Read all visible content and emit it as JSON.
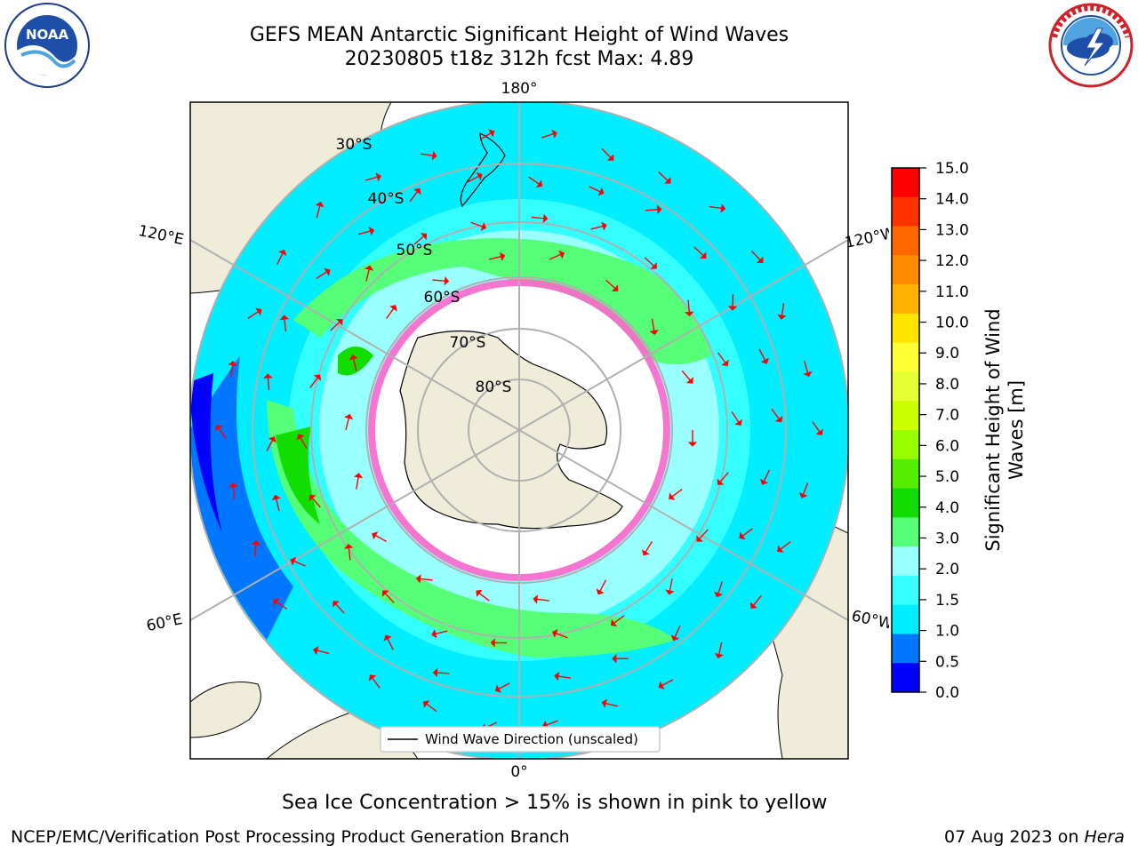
{
  "title": {
    "line1": "GEFS MEAN Antarctic Significant Height of Wind Waves",
    "line2": "20230805 t18z 312h fcst   Max: 4.89"
  },
  "logos": {
    "left": {
      "icon": "noaa-logo-icon",
      "text": "NOAA"
    },
    "right": {
      "icon": "nws-logo-icon"
    }
  },
  "map": {
    "projection": "south-polar-stereographic",
    "lon_labels": {
      "top": "180°",
      "bottom": "0°",
      "left_upper": "120°E",
      "left_lower": "60°E",
      "right_upper": "120°W",
      "right_lower": "60°W"
    },
    "lat_labels": [
      "30°S",
      "40°S",
      "50°S",
      "60°S",
      "70°S",
      "80°S"
    ],
    "legend_label": "Wind Wave Direction (unscaled)"
  },
  "colorbar": {
    "label": "Significant Height of Wind Waves [m]",
    "label_line1": "Significant Height of Wind",
    "label_line2": "Waves [m]",
    "ticks": [
      "15.0",
      "14.0",
      "13.0",
      "12.0",
      "11.0",
      "10.0",
      "9.0",
      "8.0",
      "7.0",
      "6.0",
      "5.0",
      "4.0",
      "3.0",
      "2.0",
      "1.5",
      "1.0",
      "0.5",
      "0.0"
    ],
    "colors": [
      "#ff0000",
      "#ff3300",
      "#ff6600",
      "#ff8c00",
      "#ffb300",
      "#ffe600",
      "#ffff33",
      "#e6ff33",
      "#ccff00",
      "#99ff00",
      "#55ee00",
      "#11dd00",
      "#55ff77",
      "#99ffff",
      "#33ffff",
      "#00eeff",
      "#0077ff",
      "#0000ff"
    ]
  },
  "note": "Sea Ice Concentration > 15% is shown in pink to yellow",
  "footer": {
    "left": "NCEP/EMC/Verification Post Processing Product Generation Branch",
    "date": "07 Aug 2023 on ",
    "host": "Hera"
  }
}
